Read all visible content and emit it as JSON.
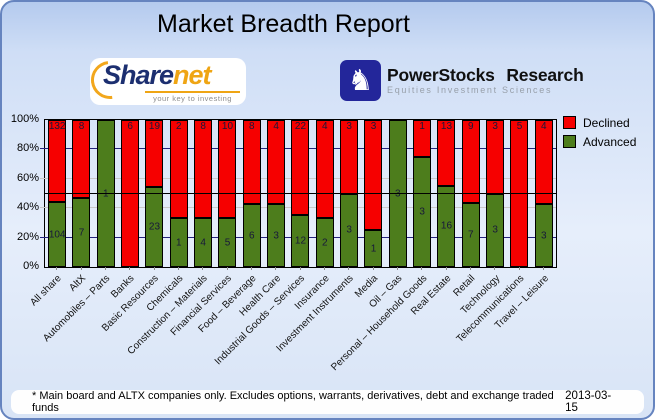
{
  "title": "Market Breadth Report",
  "logos": {
    "sharenet": {
      "name_part1": "Share",
      "name_part2": "net",
      "tagline": "your key to investing"
    },
    "powerstocks": {
      "name": "PowerStocks Research",
      "tagline": "Equities Investment Sciences",
      "knight_glyph": "♞"
    }
  },
  "legend": [
    {
      "label": "Declined",
      "color": "#f60000"
    },
    {
      "label": "Advanced",
      "color": "#4d7d1c"
    }
  ],
  "footer": {
    "note": "* Main board and ALTX companies only. Excludes options, warrants, derivatives, debt and exchange traded funds",
    "date": "2013-03-15"
  },
  "chart_data": {
    "type": "bar",
    "stacked": true,
    "unit": "percent_of_total_per_category",
    "title": "Market Breadth Report",
    "xlabel": "",
    "ylabel": "",
    "ylim": [
      0,
      100
    ],
    "y_ticks": [
      "0%",
      "20%",
      "40%",
      "60%",
      "80%",
      "100%"
    ],
    "reference_line_pct": 50,
    "legend_position": "top-right",
    "categories": [
      "All share",
      "AltX",
      "Automobiles – Parts",
      "Banks",
      "Basic Resources",
      "Chemicals",
      "Construction – Materials",
      "Financial Services",
      "Food – Beverage",
      "Health Care",
      "Industrial Goods – Services",
      "Insurance",
      "Investment Instruments",
      "Media",
      "Oil – Gas",
      "Personal – Household Goods",
      "Real Estate",
      "Retail",
      "Technology",
      "Telecommunications",
      "Travel – Leisure"
    ],
    "series": [
      {
        "name": "Advanced",
        "color": "#4d7d1c",
        "values": [
          104,
          7,
          1,
          0,
          23,
          1,
          4,
          5,
          6,
          3,
          12,
          2,
          3,
          1,
          3,
          3,
          16,
          7,
          3,
          0,
          3
        ]
      },
      {
        "name": "Declined",
        "color": "#f60000",
        "values": [
          132,
          8,
          0,
          6,
          19,
          2,
          8,
          10,
          8,
          4,
          22,
          4,
          3,
          3,
          0,
          1,
          13,
          9,
          3,
          5,
          4
        ]
      }
    ]
  }
}
